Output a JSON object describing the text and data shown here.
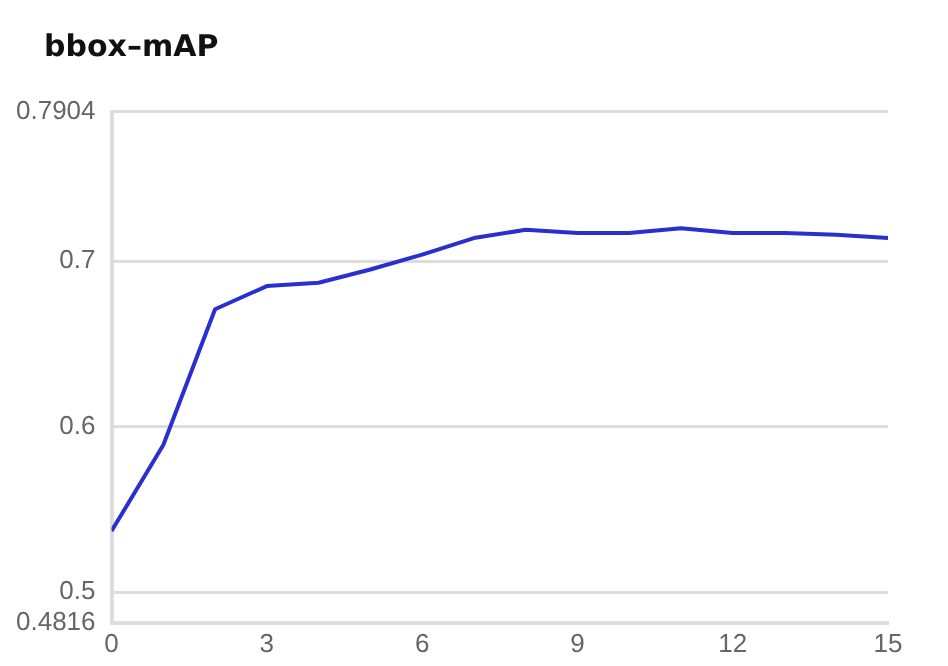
{
  "chart_data": {
    "type": "line",
    "title": "bbox–mAP",
    "x": [
      0,
      1,
      2,
      3,
      4,
      5,
      6,
      7,
      8,
      9,
      10,
      11,
      12,
      13,
      14,
      15
    ],
    "series": [
      {
        "color": "#2a2fd0",
        "values": [
          0.537,
          0.589,
          0.671,
          0.685,
          0.687,
          0.695,
          0.704,
          0.714,
          0.719,
          0.717,
          0.717,
          0.72,
          0.717,
          0.717,
          0.716,
          0.714
        ]
      }
    ],
    "xlim": [
      0,
      15
    ],
    "xticks": [
      0,
      3,
      6,
      9,
      12,
      15
    ],
    "ylim": [
      0.4816,
      0.7904
    ],
    "yticks": [
      0.4816,
      0.5,
      0.6,
      0.7,
      0.7904
    ],
    "grid": "y",
    "marker": "none",
    "line_style": "solid",
    "legend": false
  }
}
